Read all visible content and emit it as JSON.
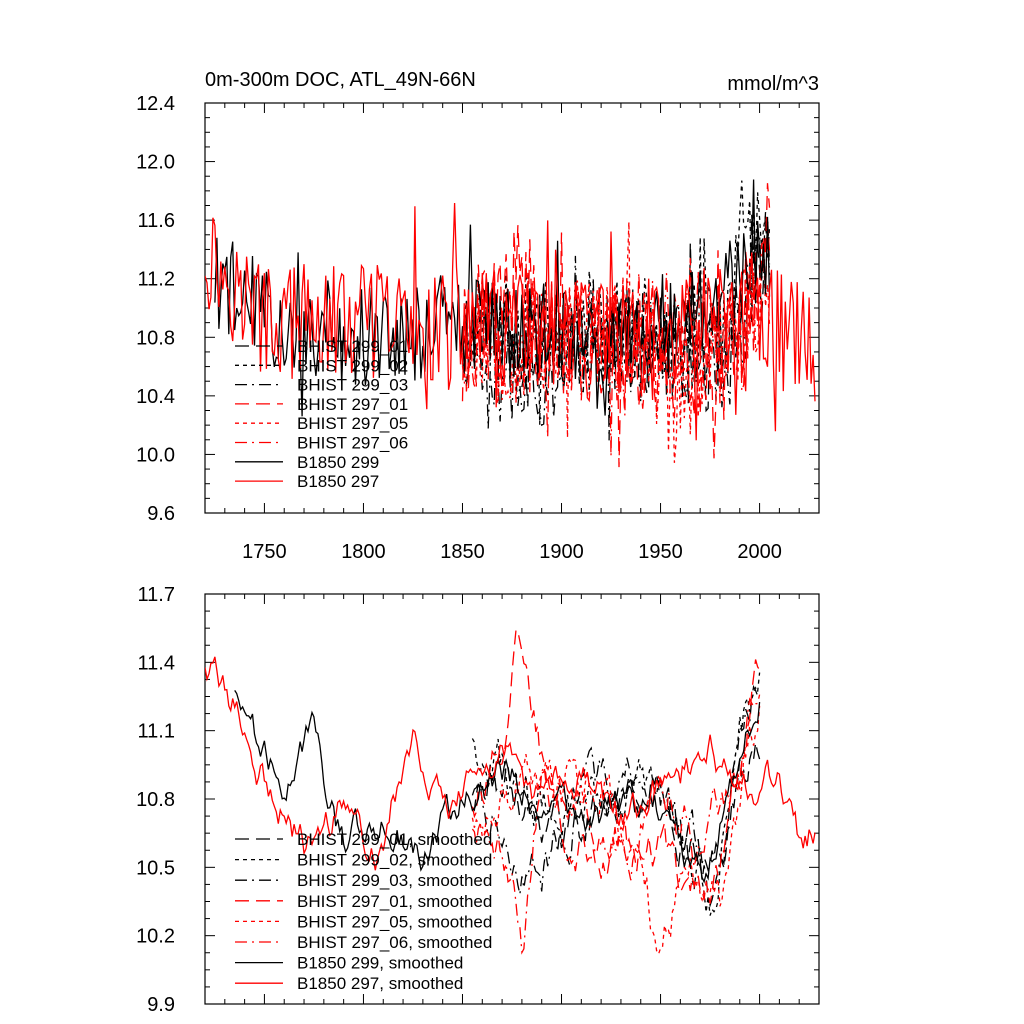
{
  "chart_data": [
    {
      "type": "line",
      "title": "0m-300m DOC, ATL_49N-66N",
      "units": "mmol/m^3",
      "xlim": [
        1720,
        2030
      ],
      "ylim": [
        9.6,
        12.4
      ],
      "xticks": [
        1750,
        1800,
        1850,
        1900,
        1950,
        2000
      ],
      "xtick_labels": [
        "1750",
        "1800",
        "1850",
        "1900",
        "1950",
        "2000"
      ],
      "yticks": [
        9.6,
        10.0,
        10.4,
        10.8,
        11.2,
        11.6,
        12.0,
        12.4
      ],
      "ytick_labels": [
        "9.6",
        "10.0",
        "10.4",
        "10.8",
        "11.2",
        "11.6",
        "12.0",
        "12.4"
      ],
      "series": [
        {
          "name": "BHIST 299_01",
          "color": "#000000",
          "dash": "long",
          "seed": 11,
          "x_start": 1850,
          "x_end": 2005,
          "anchors": [
            [
              1850,
              10.9
            ],
            [
              1880,
              10.8
            ],
            [
              1900,
              10.7
            ],
            [
              1930,
              10.8
            ],
            [
              1960,
              10.7
            ],
            [
              1985,
              10.6
            ],
            [
              2005,
              11.4
            ]
          ],
          "amp": 0.35
        },
        {
          "name": "BHIST 299_02",
          "color": "#000000",
          "dash": "short",
          "seed": 23,
          "x_start": 1850,
          "x_end": 2005,
          "anchors": [
            [
              1850,
              10.9
            ],
            [
              1880,
              10.9
            ],
            [
              1900,
              10.8
            ],
            [
              1930,
              10.9
            ],
            [
              1960,
              10.8
            ],
            [
              1985,
              10.9
            ],
            [
              1992,
              11.9
            ],
            [
              2005,
              11.3
            ]
          ],
          "amp": 0.35
        },
        {
          "name": "BHIST 299_03",
          "color": "#000000",
          "dash": "dashdot",
          "seed": 37,
          "x_start": 1850,
          "x_end": 2005,
          "anchors": [
            [
              1850,
              10.8
            ],
            [
              1890,
              10.5
            ],
            [
              1920,
              10.8
            ],
            [
              1960,
              10.7
            ],
            [
              1985,
              10.6
            ],
            [
              2005,
              11.5
            ]
          ],
          "amp": 0.35
        },
        {
          "name": "BHIST 297_01",
          "color": "#ff0000",
          "dash": "long",
          "seed": 41,
          "x_start": 1850,
          "x_end": 2005,
          "anchors": [
            [
              1850,
              10.8
            ],
            [
              1880,
              11.2
            ],
            [
              1900,
              10.8
            ],
            [
              1930,
              10.7
            ],
            [
              1960,
              10.6
            ],
            [
              1985,
              10.6
            ],
            [
              2005,
              11.6
            ]
          ],
          "amp": 0.4
        },
        {
          "name": "BHIST 297_05",
          "color": "#ff0000",
          "dash": "short",
          "seed": 53,
          "x_start": 1850,
          "x_end": 2005,
          "anchors": [
            [
              1850,
              10.8
            ],
            [
              1880,
              10.7
            ],
            [
              1910,
              10.9
            ],
            [
              1940,
              10.8
            ],
            [
              1955,
              10.3
            ],
            [
              1980,
              10.7
            ],
            [
              2005,
              11.2
            ]
          ],
          "amp": 0.4
        },
        {
          "name": "BHIST 297_06",
          "color": "#ff0000",
          "dash": "dashdot",
          "seed": 67,
          "x_start": 1850,
          "x_end": 2005,
          "anchors": [
            [
              1850,
              10.8
            ],
            [
              1880,
              10.8
            ],
            [
              1910,
              10.7
            ],
            [
              1940,
              10.9
            ],
            [
              1970,
              10.8
            ],
            [
              1990,
              10.7
            ],
            [
              2005,
              11.5
            ]
          ],
          "amp": 0.4
        },
        {
          "name": "B1850 299",
          "color": "#000000",
          "dash": "solid",
          "seed": 79,
          "x_start": 1725,
          "x_end": 2005,
          "anchors": [
            [
              1725,
              11.2
            ],
            [
              1760,
              10.9
            ],
            [
              1800,
              10.8
            ],
            [
              1850,
              10.9
            ],
            [
              1900,
              10.8
            ],
            [
              1950,
              10.8
            ],
            [
              2005,
              11.4
            ]
          ],
          "amp": 0.35
        },
        {
          "name": "B1850 297",
          "color": "#ff0000",
          "dash": "solid",
          "seed": 97,
          "x_start": 1720,
          "x_end": 2028,
          "anchors": [
            [
              1720,
              11.4
            ],
            [
              1750,
              10.9
            ],
            [
              1800,
              10.9
            ],
            [
              1850,
              10.9
            ],
            [
              1900,
              10.8
            ],
            [
              1950,
              10.8
            ],
            [
              2000,
              11.0
            ],
            [
              2028,
              10.7
            ]
          ],
          "amp": 0.4
        }
      ]
    },
    {
      "type": "line",
      "title": "",
      "xlim": [
        1720,
        2030
      ],
      "ylim": [
        9.9,
        11.7
      ],
      "xticks": [
        1750,
        1800,
        1850,
        1900,
        1950,
        2000
      ],
      "xtick_labels": [],
      "yticks": [
        9.9,
        10.2,
        10.5,
        10.8,
        11.1,
        11.4,
        11.7
      ],
      "ytick_labels": [
        "9.9",
        "10.2",
        "10.5",
        "10.8",
        "11.1",
        "11.4",
        "11.7"
      ],
      "series": [
        {
          "name": "BHIST 299_01, smoothed",
          "color": "#000000",
          "dash": "long",
          "seed": 111,
          "x_start": 1855,
          "x_end": 2000,
          "anchors": [
            [
              1855,
              10.8
            ],
            [
              1875,
              10.9
            ],
            [
              1895,
              10.7
            ],
            [
              1915,
              10.75
            ],
            [
              1940,
              10.85
            ],
            [
              1960,
              10.7
            ],
            [
              1975,
              10.45
            ],
            [
              1990,
              10.85
            ],
            [
              2000,
              11.1
            ]
          ],
          "amp": 0.08
        },
        {
          "name": "BHIST 299_02, smoothed",
          "color": "#000000",
          "dash": "short",
          "seed": 123,
          "x_start": 1855,
          "x_end": 2000,
          "anchors": [
            [
              1855,
              11.1
            ],
            [
              1875,
              10.85
            ],
            [
              1895,
              10.7
            ],
            [
              1915,
              10.8
            ],
            [
              1935,
              10.85
            ],
            [
              1955,
              10.75
            ],
            [
              1975,
              10.35
            ],
            [
              1990,
              11.1
            ],
            [
              2000,
              11.3
            ]
          ],
          "amp": 0.08
        },
        {
          "name": "BHIST 299_03, smoothed",
          "color": "#000000",
          "dash": "dashdot",
          "seed": 137,
          "x_start": 1855,
          "x_end": 2000,
          "anchors": [
            [
              1855,
              10.85
            ],
            [
              1875,
              10.6
            ],
            [
              1890,
              10.5
            ],
            [
              1910,
              10.8
            ],
            [
              1935,
              10.9
            ],
            [
              1955,
              10.75
            ],
            [
              1975,
              10.4
            ],
            [
              1990,
              11.0
            ],
            [
              2000,
              11.4
            ]
          ],
          "amp": 0.08
        },
        {
          "name": "BHIST 297_01, smoothed",
          "color": "#ff0000",
          "dash": "long",
          "seed": 141,
          "x_start": 1855,
          "x_end": 2000,
          "anchors": [
            [
              1855,
              10.8
            ],
            [
              1870,
              11.1
            ],
            [
              1878,
              11.45
            ],
            [
              1890,
              11.0
            ],
            [
              1905,
              10.7
            ],
            [
              1925,
              10.6
            ],
            [
              1950,
              10.55
            ],
            [
              1975,
              10.45
            ],
            [
              1990,
              10.9
            ],
            [
              2000,
              11.4
            ]
          ],
          "amp": 0.08
        },
        {
          "name": "BHIST 297_05, smoothed",
          "color": "#ff0000",
          "dash": "short",
          "seed": 153,
          "x_start": 1855,
          "x_end": 2000,
          "anchors": [
            [
              1855,
              10.75
            ],
            [
              1875,
              10.85
            ],
            [
              1895,
              10.8
            ],
            [
              1920,
              10.9
            ],
            [
              1935,
              10.7
            ],
            [
              1950,
              10.1
            ],
            [
              1965,
              10.6
            ],
            [
              1980,
              10.3
            ],
            [
              1995,
              11.1
            ],
            [
              2000,
              11.2
            ]
          ],
          "amp": 0.08
        },
        {
          "name": "BHIST 297_06, smoothed",
          "color": "#ff0000",
          "dash": "dashdot",
          "seed": 167,
          "x_start": 1855,
          "x_end": 2000,
          "anchors": [
            [
              1855,
              10.7
            ],
            [
              1870,
              10.6
            ],
            [
              1880,
              10.2
            ],
            [
              1890,
              10.9
            ],
            [
              1910,
              10.8
            ],
            [
              1935,
              10.6
            ],
            [
              1950,
              11.0
            ],
            [
              1970,
              10.6
            ],
            [
              1990,
              10.9
            ],
            [
              2000,
              11.4
            ]
          ],
          "amp": 0.08
        },
        {
          "name": "B1850 299, smoothed",
          "color": "#000000",
          "dash": "solid",
          "seed": 179,
          "x_start": 1735,
          "x_end": 2000,
          "anchors": [
            [
              1735,
              11.3
            ],
            [
              1750,
              11.0
            ],
            [
              1765,
              10.9
            ],
            [
              1775,
              11.1
            ],
            [
              1790,
              10.6
            ],
            [
              1810,
              10.7
            ],
            [
              1830,
              10.6
            ],
            [
              1850,
              10.8
            ],
            [
              1875,
              10.9
            ],
            [
              1900,
              10.75
            ],
            [
              1925,
              10.7
            ],
            [
              1950,
              10.75
            ],
            [
              1970,
              10.4
            ],
            [
              1990,
              11.0
            ],
            [
              2000,
              11.3
            ]
          ],
          "amp": 0.06
        },
        {
          "name": "B1850 297, smoothed",
          "color": "#ff0000",
          "dash": "solid",
          "seed": 197,
          "x_start": 1720,
          "x_end": 2028,
          "anchors": [
            [
              1720,
              11.4
            ],
            [
              1735,
              11.2
            ],
            [
              1755,
              10.8
            ],
            [
              1770,
              10.6
            ],
            [
              1790,
              10.75
            ],
            [
              1810,
              10.6
            ],
            [
              1825,
              11.1
            ],
            [
              1845,
              10.8
            ],
            [
              1870,
              11.0
            ],
            [
              1890,
              10.8
            ],
            [
              1910,
              10.9
            ],
            [
              1930,
              10.7
            ],
            [
              1955,
              10.9
            ],
            [
              1975,
              11.0
            ],
            [
              1995,
              10.8
            ],
            [
              2010,
              10.9
            ],
            [
              2020,
              10.6
            ],
            [
              2028,
              10.7
            ]
          ],
          "amp": 0.06
        }
      ]
    }
  ]
}
